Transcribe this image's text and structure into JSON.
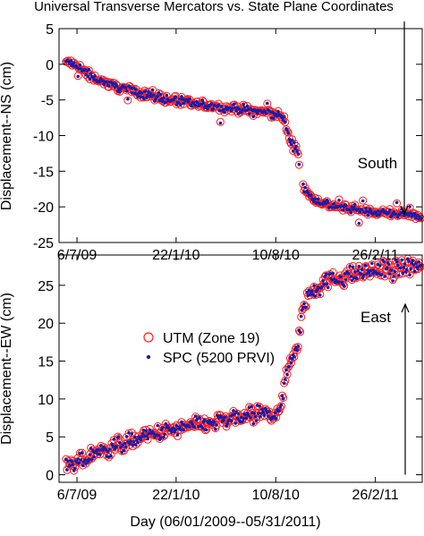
{
  "title": "Universal Transverse Mercators vs. State Plane Coordinates",
  "xlabel": "Day (06/01/2009--05/31/2011)",
  "colors": {
    "utm": "#ff2020",
    "spc": "#1c1ca8",
    "axis": "#000000"
  },
  "chart_data": [
    {
      "type": "scatter",
      "ylabel": "Displacement--NS (cm)",
      "ylim": [
        -25,
        5
      ],
      "yticks": [
        "5",
        "0",
        "-5",
        "-10",
        "-15",
        "-20",
        "-25"
      ],
      "xlim": [
        0,
        729
      ],
      "xticks": [
        {
          "label": "6/7/09",
          "day": 36
        },
        {
          "label": "22/1/10",
          "day": 235
        },
        {
          "label": "10/8/10",
          "day": 435
        },
        {
          "label": "26/2/11",
          "day": 635
        }
      ],
      "annotation": "South",
      "arrow": {
        "from": 6,
        "to": -21
      },
      "trend": [
        [
          20,
          0.3
        ],
        [
          60,
          -1.5
        ],
        [
          100,
          -2.8
        ],
        [
          140,
          -3.6
        ],
        [
          200,
          -4.6
        ],
        [
          260,
          -5.5
        ],
        [
          320,
          -6.0
        ],
        [
          380,
          -6.5
        ],
        [
          410,
          -6.7
        ],
        [
          440,
          -7.0
        ],
        [
          452,
          -7.7
        ],
        [
          458,
          -9.5
        ],
        [
          466,
          -11.0
        ],
        [
          476,
          -12.0
        ],
        [
          480,
          -12.3
        ],
        [
          486,
          -16.5
        ],
        [
          500,
          -18.3
        ],
        [
          530,
          -19.5
        ],
        [
          580,
          -20.3
        ],
        [
          640,
          -20.8
        ],
        [
          729,
          -21.2
        ]
      ],
      "series": [
        {
          "name": "UTM (Zone 19)",
          "marker": "open-circle"
        },
        {
          "name": "SPC (5200 PRVI)",
          "marker": "dot"
        }
      ]
    },
    {
      "type": "scatter",
      "ylabel": "Displacement--EW (cm)",
      "ylim": [
        -1,
        29
      ],
      "yticks": [
        "25",
        "20",
        "15",
        "10",
        "5",
        "0"
      ],
      "ytick_values": [
        25,
        20,
        15,
        10,
        5,
        0
      ],
      "xlim": [
        0,
        729
      ],
      "xticks": [
        {
          "label": "6/7/09",
          "day": 36
        },
        {
          "label": "22/1/10",
          "day": 235
        },
        {
          "label": "10/8/10",
          "day": 435
        },
        {
          "label": "26/2/11",
          "day": 635
        }
      ],
      "annotation": "East",
      "arrow": {
        "from": 0,
        "to": 22.5
      },
      "trend": [
        [
          20,
          0.8
        ],
        [
          60,
          2.3
        ],
        [
          100,
          3.5
        ],
        [
          150,
          4.6
        ],
        [
          200,
          5.5
        ],
        [
          260,
          6.3
        ],
        [
          320,
          7.0
        ],
        [
          380,
          7.7
        ],
        [
          420,
          8.0
        ],
        [
          440,
          8.5
        ],
        [
          450,
          10.5
        ],
        [
          458,
          13.5
        ],
        [
          466,
          15.5
        ],
        [
          474,
          16.5
        ],
        [
          480,
          17.5
        ],
        [
          488,
          21.5
        ],
        [
          500,
          24.0
        ],
        [
          530,
          25.3
        ],
        [
          580,
          26.3
        ],
        [
          640,
          27.0
        ],
        [
          729,
          27.6
        ]
      ],
      "series": [
        {
          "name": "UTM (Zone 19)",
          "marker": "open-circle"
        },
        {
          "name": "SPC (5200 PRVI)",
          "marker": "dot"
        }
      ]
    }
  ],
  "legend": {
    "items": [
      {
        "label": "UTM (Zone 19)"
      },
      {
        "label": "SPC (5200 PRVI)"
      }
    ]
  }
}
